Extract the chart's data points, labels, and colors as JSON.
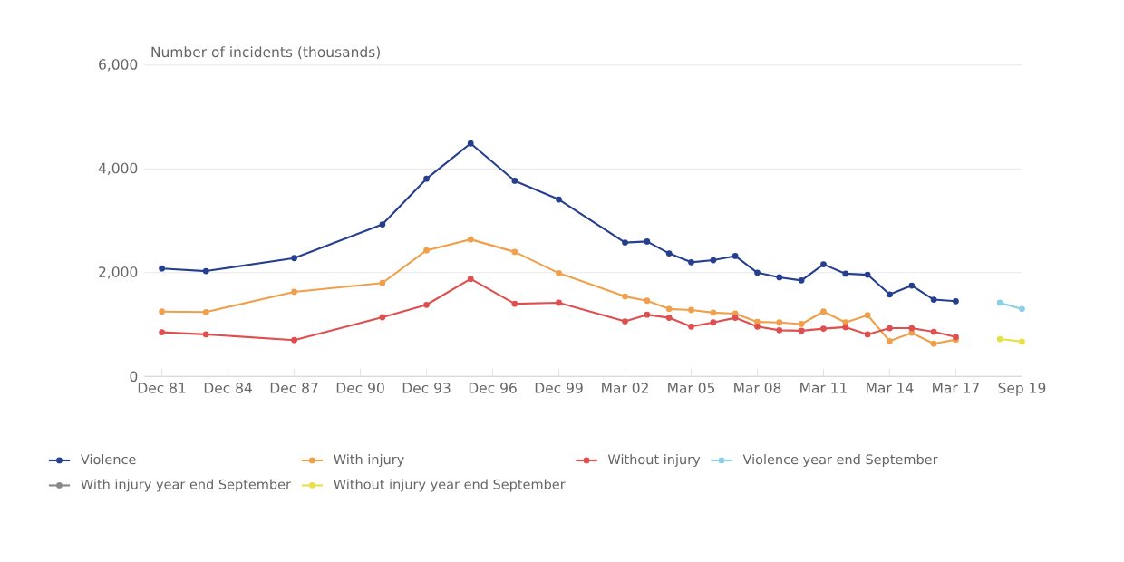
{
  "chart_data": {
    "type": "line",
    "ylabel": "Number of incidents (thousands)",
    "categories": [
      "Dec 81",
      null,
      null,
      "Dec 84",
      null,
      null,
      "Dec 87",
      null,
      null,
      "Dec 90",
      null,
      null,
      "Dec 93",
      null,
      null,
      "Dec 96",
      null,
      null,
      "Dec 99",
      null,
      null,
      "Mar 02",
      null,
      null,
      "Mar 05",
      null,
      null,
      "Mar 08",
      null,
      null,
      "Mar 11",
      null,
      null,
      "Mar 14",
      null,
      null,
      "Mar 17",
      null,
      null,
      "Sep 19"
    ],
    "series": [
      {
        "name": "Violence",
        "color": "#263f8f",
        "values": [
          2080,
          null,
          2030,
          null,
          null,
          null,
          2280,
          null,
          null,
          null,
          2930,
          null,
          3810,
          null,
          4490,
          null,
          3770,
          null,
          3410,
          null,
          null,
          2580,
          2600,
          2370,
          2200,
          2240,
          2320,
          2000,
          1910,
          1850,
          2160,
          1980,
          1960,
          1580,
          1750,
          1480,
          1450,
          null,
          null,
          null
        ]
      },
      {
        "name": "With injury",
        "color": "#f0a04b",
        "values": [
          1250,
          null,
          1240,
          null,
          null,
          null,
          1630,
          null,
          null,
          null,
          1800,
          null,
          2430,
          null,
          2640,
          null,
          2400,
          null,
          1990,
          null,
          null,
          1540,
          1460,
          1300,
          1280,
          1230,
          1210,
          1050,
          1040,
          1010,
          1250,
          1040,
          1180,
          680,
          840,
          630,
          710,
          null,
          null,
          null
        ]
      },
      {
        "name": "Without injury",
        "color": "#e04f4f",
        "values": [
          850,
          null,
          810,
          null,
          null,
          null,
          700,
          null,
          null,
          null,
          1140,
          null,
          1380,
          null,
          1880,
          null,
          1400,
          null,
          1420,
          null,
          null,
          1060,
          1190,
          1130,
          960,
          1040,
          1130,
          960,
          890,
          880,
          920,
          950,
          810,
          930,
          930,
          860,
          760,
          null,
          null,
          null
        ]
      },
      {
        "name": "Violence year end September",
        "color": "#8ecfe6",
        "values": [
          null,
          null,
          null,
          null,
          null,
          null,
          null,
          null,
          null,
          null,
          null,
          null,
          null,
          null,
          null,
          null,
          null,
          null,
          null,
          null,
          null,
          null,
          null,
          null,
          null,
          null,
          null,
          null,
          null,
          null,
          null,
          null,
          null,
          null,
          null,
          null,
          null,
          null,
          1420,
          1300
        ]
      },
      {
        "name": "With injury year end September",
        "color": "#888888",
        "values": [
          null,
          null,
          null,
          null,
          null,
          null,
          null,
          null,
          null,
          null,
          null,
          null,
          null,
          null,
          null,
          null,
          null,
          null,
          null,
          null,
          null,
          null,
          null,
          null,
          null,
          null,
          null,
          null,
          null,
          null,
          null,
          null,
          null,
          null,
          null,
          null,
          null,
          null,
          null,
          null
        ]
      },
      {
        "name": "Without injury year end September",
        "color": "#e6e04a",
        "values": [
          null,
          null,
          null,
          null,
          null,
          null,
          null,
          null,
          null,
          null,
          null,
          null,
          null,
          null,
          null,
          null,
          null,
          null,
          null,
          null,
          null,
          null,
          null,
          null,
          null,
          null,
          null,
          null,
          null,
          null,
          null,
          null,
          null,
          null,
          null,
          null,
          null,
          null,
          720,
          670
        ]
      }
    ],
    "ylim": [
      0,
      6000
    ],
    "yticks": [
      0,
      {
        "value": 2000,
        "label": "2,000"
      },
      {
        "value": 4000,
        "label": "4,000"
      },
      {
        "value": 6000,
        "label": "6,000"
      }
    ],
    "grid": "y",
    "legend": "bottom",
    "marker": "circle",
    "line_style": "solid"
  }
}
